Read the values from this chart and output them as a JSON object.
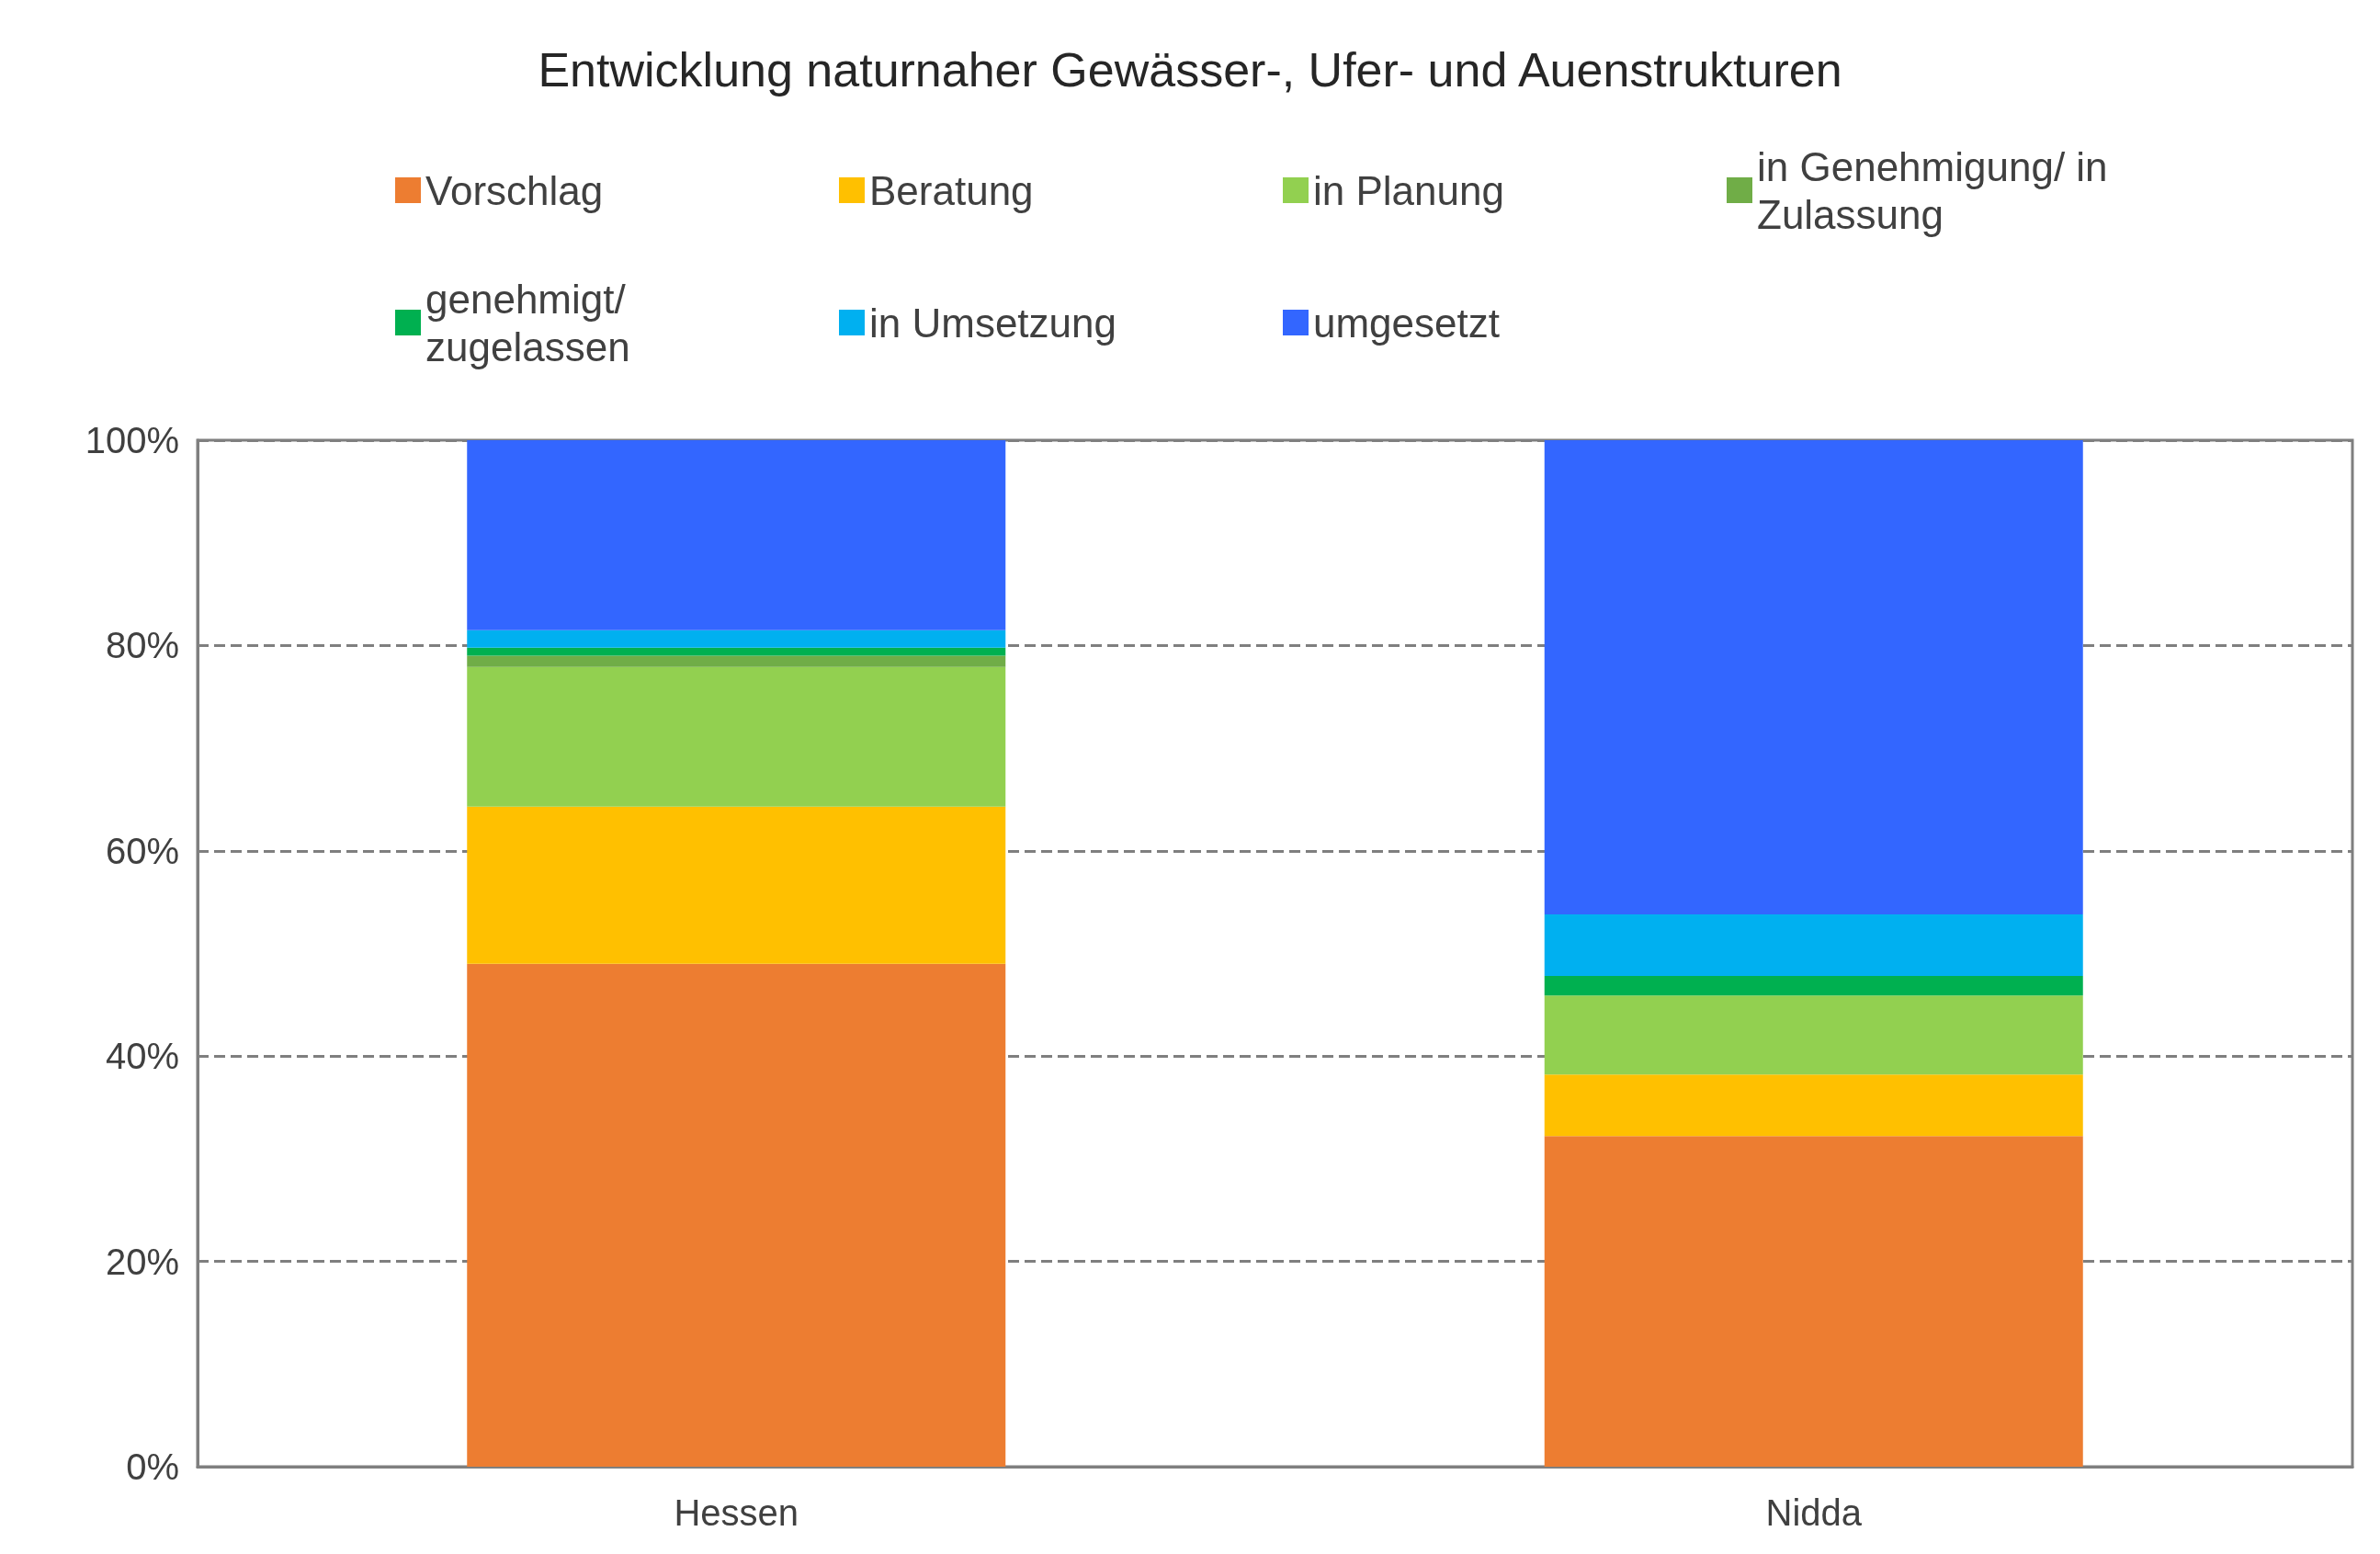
{
  "chart_data": {
    "type": "bar",
    "title": "Entwicklung naturnaher Gewässer-, Ufer- und Auenstrukturen",
    "categories": [
      "Hessen",
      "Nidda"
    ],
    "stacked": true,
    "series": [
      {
        "name": "Vorschlag",
        "color": "#ed7d31",
        "values": [
          49,
          32.2
        ]
      },
      {
        "name": "Beratung",
        "color": "#ffc000",
        "values": [
          15.3,
          6.0
        ]
      },
      {
        "name": "in Planung",
        "color": "#92d050",
        "values": [
          13.6,
          7.7
        ]
      },
      {
        "name": "in Genehmigung/ in Zulassung",
        "color": "#70ad47",
        "values": [
          1.1,
          0
        ]
      },
      {
        "name": "genehmigt/ zugelassen",
        "color": "#00b050",
        "values": [
          0.8,
          1.9
        ]
      },
      {
        "name": "in Umsetzung",
        "color": "#00b0f0",
        "values": [
          1.7,
          6.0
        ]
      },
      {
        "name": "umgesetzt",
        "color": "#3366ff",
        "values": [
          18.5,
          46.2
        ]
      }
    ],
    "ylim": [
      0,
      100
    ],
    "yticks": [
      {
        "value": 0,
        "label": "0%"
      },
      {
        "value": 20,
        "label": "20%"
      },
      {
        "value": 40,
        "label": "40%"
      },
      {
        "value": 60,
        "label": "60%"
      },
      {
        "value": 80,
        "label": "80%"
      },
      {
        "value": 100,
        "label": "100%"
      }
    ],
    "grid": "y",
    "legend": "top"
  }
}
